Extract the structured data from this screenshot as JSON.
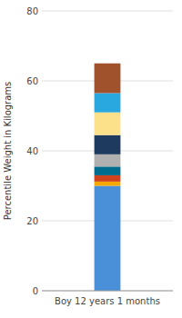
{
  "chart_data": {
    "type": "bar",
    "stacked": true,
    "grid": true,
    "y_label": "Percentile Weight in Kilograms",
    "categories": [
      "Boy 12 years 1 months"
    ],
    "ylim": [
      0,
      80
    ],
    "yticks": [
      0,
      20,
      40,
      60,
      80
    ],
    "series": [
      {
        "color": "#4a90d9",
        "values": [
          30.0
        ]
      },
      {
        "color": "#f5a800",
        "values": [
          1.2
        ]
      },
      {
        "color": "#d0421b",
        "values": [
          1.8
        ]
      },
      {
        "color": "#006d8f",
        "values": [
          2.5
        ]
      },
      {
        "color": "#b0b0b0",
        "values": [
          3.5
        ]
      },
      {
        "color": "#1e3a5f",
        "values": [
          5.5
        ]
      },
      {
        "color": "#fce08a",
        "values": [
          6.5
        ]
      },
      {
        "color": "#29a8e0",
        "values": [
          5.5
        ]
      },
      {
        "color": "#a0522d",
        "values": [
          8.5
        ]
      }
    ]
  }
}
